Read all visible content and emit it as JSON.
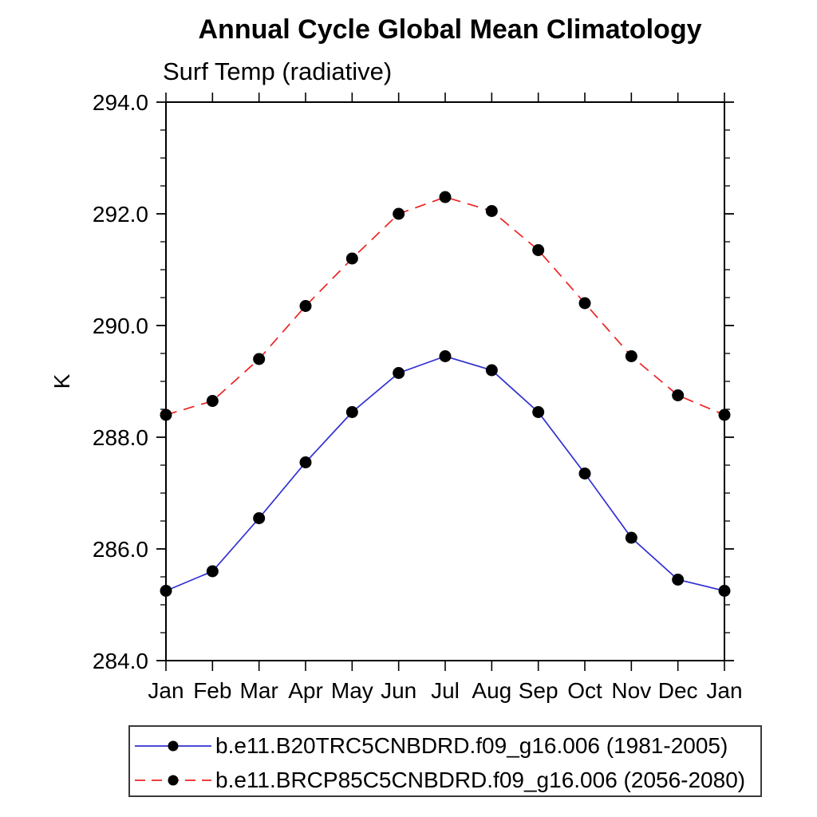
{
  "page": {
    "title": "Annual Cycle Global Mean Climatology",
    "subtitle": "Surf Temp (radiative)"
  },
  "colors": {
    "axis": "#000000",
    "background": "#ffffff",
    "series1": "#3030d3",
    "series2": "#ee2222",
    "marker": "#000000"
  },
  "chart_data": {
    "type": "line",
    "title": "Annual Cycle Global Mean Climatology",
    "subtitle": "Surf Temp (radiative)",
    "xlabel": "",
    "ylabel": "K",
    "x_categories": [
      "Jan",
      "Feb",
      "Mar",
      "Apr",
      "May",
      "Jun",
      "Jul",
      "Aug",
      "Sep",
      "Oct",
      "Nov",
      "Dec",
      "Jan"
    ],
    "ylim": [
      284.0,
      294.0
    ],
    "y_tick_labels": [
      "284.0",
      "286.0",
      "288.0",
      "290.0",
      "292.0",
      "294.0"
    ],
    "y_major_step": 2.0,
    "y_minor_step": 0.5,
    "grid": false,
    "legend_position": "bottom-left",
    "series": [
      {
        "name": "b.e11.B20TRC5CNBDRD.f09_g16.006 (1981-2005)",
        "line_style": "solid",
        "color": "#3030d3",
        "marker": "circle",
        "marker_color": "#000000",
        "values": [
          285.25,
          285.6,
          286.55,
          287.55,
          288.45,
          289.15,
          289.45,
          289.2,
          288.45,
          287.35,
          286.2,
          285.45,
          285.25
        ]
      },
      {
        "name": "b.e11.BRCP85C5CNBDRD.f09_g16.006 (2056-2080)",
        "line_style": "dashed",
        "color": "#ee2222",
        "marker": "circle",
        "marker_color": "#000000",
        "values": [
          288.4,
          288.65,
          289.4,
          290.35,
          291.2,
          292.0,
          292.3,
          292.05,
          291.35,
          290.4,
          289.45,
          288.75,
          288.4
        ]
      }
    ]
  }
}
